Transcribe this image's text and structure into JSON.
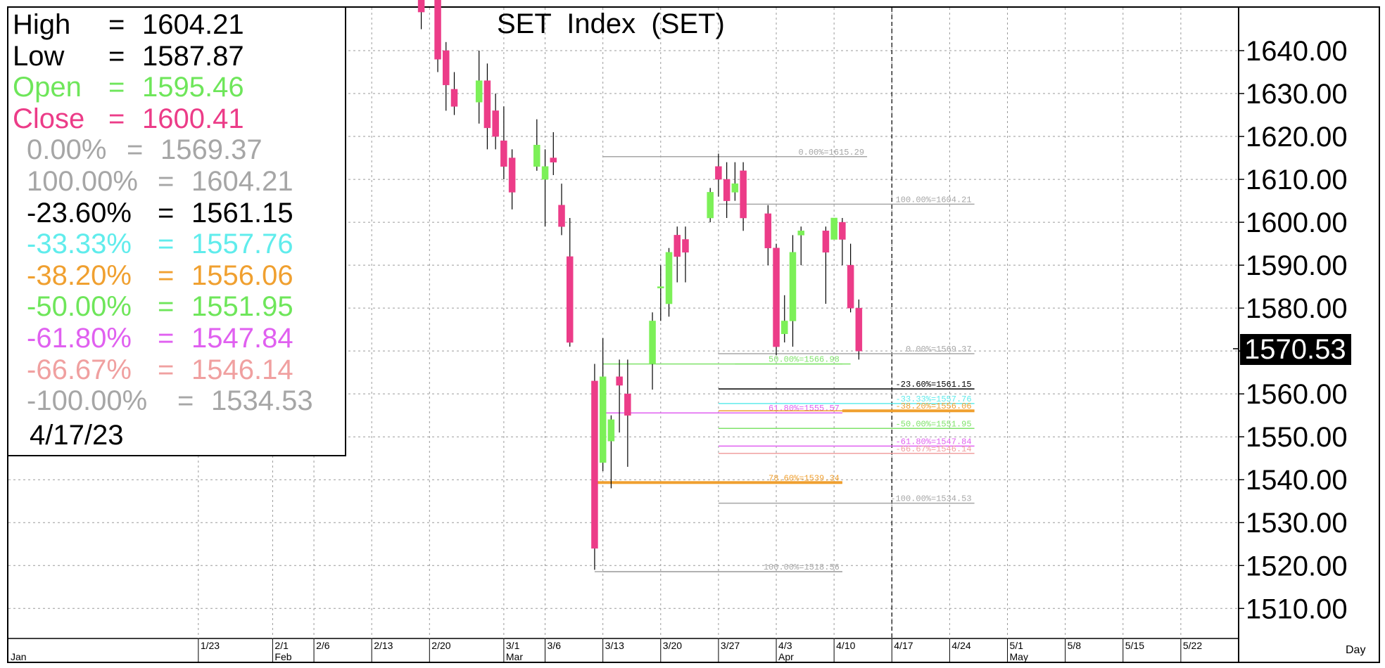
{
  "chart_data": {
    "type": "candlestick",
    "title": "SET  Index  (SET)",
    "yaxis": {
      "range": [
        1503,
        1650
      ],
      "ticks": [
        "1510.00",
        "1520.00",
        "1530.00",
        "1540.00",
        "1550.00",
        "1560.00",
        "1570.00",
        "1580.00",
        "1590.00",
        "1600.00",
        "1610.00",
        "1620.00",
        "1630.00",
        "1640.00"
      ],
      "tick_values": [
        1510,
        1520,
        1530,
        1540,
        1550,
        1560,
        1570,
        1580,
        1590,
        1600,
        1610,
        1620,
        1630,
        1640
      ],
      "last_price_label": "1570.53",
      "last_price": 1570.53
    },
    "xaxis": {
      "week_ticks": [
        "1/23",
        "2/1",
        "2/6",
        "2/13",
        "2/20",
        "3/1",
        "3/6",
        "3/13",
        "3/20",
        "3/27",
        "4/3",
        "4/10",
        "4/17",
        "4/24",
        "5/1",
        "5/8",
        "5/15",
        "5/22"
      ],
      "week_tick_day": [
        23,
        32,
        37,
        44,
        51,
        60,
        65,
        72,
        79,
        86,
        93,
        100,
        107,
        114,
        121,
        128,
        135,
        142
      ],
      "month_labels": [
        "Jan",
        "Feb",
        "Mar",
        "Apr",
        "May"
      ],
      "month_label_day": [
        0,
        32,
        60,
        93,
        121
      ],
      "unit_label": "Day"
    },
    "candles": [
      {
        "day": 50,
        "open": 1660,
        "high": 1663,
        "low": 1645,
        "close": 1649
      },
      {
        "day": 52,
        "open": 1652,
        "high": 1653,
        "low": 1635,
        "close": 1638
      },
      {
        "day": 53,
        "open": 1640,
        "high": 1642,
        "low": 1626,
        "close": 1632
      },
      {
        "day": 54,
        "open": 1631,
        "high": 1635,
        "low": 1625,
        "close": 1627
      },
      {
        "day": 57,
        "open": 1628,
        "high": 1640,
        "low": 1623,
        "close": 1633
      },
      {
        "day": 58,
        "open": 1633,
        "high": 1637,
        "low": 1617,
        "close": 1622
      },
      {
        "day": 59,
        "open": 1626,
        "high": 1630,
        "low": 1617,
        "close": 1620
      },
      {
        "day": 60,
        "open": 1619,
        "high": 1627,
        "low": 1610,
        "close": 1613
      },
      {
        "day": 61,
        "open": 1615,
        "high": 1617,
        "low": 1603,
        "close": 1607
      },
      {
        "day": 64,
        "open": 1613,
        "high": 1624,
        "low": 1612,
        "close": 1618
      },
      {
        "day": 65,
        "open": 1610,
        "high": 1617,
        "low": 1599,
        "close": 1613
      },
      {
        "day": 66,
        "open": 1615,
        "high": 1621,
        "low": 1611,
        "close": 1614
      },
      {
        "day": 67,
        "open": 1604,
        "high": 1609,
        "low": 1597,
        "close": 1599
      },
      {
        "day": 68,
        "open": 1592,
        "high": 1601,
        "low": 1571,
        "close": 1572
      },
      {
        "day": 71,
        "open": 1563,
        "high": 1567,
        "low": 1519,
        "close": 1524
      },
      {
        "day": 72,
        "open": 1544,
        "high": 1573,
        "low": 1542,
        "close": 1564
      },
      {
        "day": 73,
        "open": 1549,
        "high": 1555,
        "low": 1538,
        "close": 1554
      },
      {
        "day": 74,
        "open": 1564,
        "high": 1568,
        "low": 1551,
        "close": 1562
      },
      {
        "day": 75,
        "open": 1560,
        "high": 1568,
        "low": 1543,
        "close": 1555
      },
      {
        "day": 78,
        "open": 1567,
        "high": 1579,
        "low": 1561,
        "close": 1577
      },
      {
        "day": 79,
        "open": 1585,
        "high": 1590,
        "low": 1577,
        "close": 1585
      },
      {
        "day": 80,
        "open": 1581,
        "high": 1594,
        "low": 1578,
        "close": 1593
      },
      {
        "day": 81,
        "open": 1597,
        "high": 1599,
        "low": 1586,
        "close": 1592
      },
      {
        "day": 82,
        "open": 1596,
        "high": 1599,
        "low": 1586,
        "close": 1593
      },
      {
        "day": 85,
        "open": 1601,
        "high": 1608,
        "low": 1600,
        "close": 1607
      },
      {
        "day": 86,
        "open": 1613,
        "high": 1616,
        "low": 1606,
        "close": 1610
      },
      {
        "day": 87,
        "open": 1610,
        "high": 1614,
        "low": 1601,
        "close": 1605
      },
      {
        "day": 88,
        "open": 1607,
        "high": 1614,
        "low": 1605,
        "close": 1609
      },
      {
        "day": 89,
        "open": 1612,
        "high": 1614,
        "low": 1598,
        "close": 1601
      },
      {
        "day": 92,
        "open": 1602,
        "high": 1604,
        "low": 1590,
        "close": 1594
      },
      {
        "day": 93,
        "open": 1594,
        "high": 1595,
        "low": 1569,
        "close": 1571
      },
      {
        "day": 94,
        "open": 1574,
        "high": 1583,
        "low": 1572,
        "close": 1577
      },
      {
        "day": 95,
        "open": 1577,
        "high": 1597,
        "low": 1571,
        "close": 1593
      },
      {
        "day": 96,
        "open": 1597,
        "high": 1599,
        "low": 1590,
        "close": 1598
      },
      {
        "day": 99,
        "open": 1598,
        "high": 1599,
        "low": 1581,
        "close": 1593
      },
      {
        "day": 100,
        "open": 1596,
        "high": 1601,
        "low": 1596,
        "close": 1601
      },
      {
        "day": 101,
        "open": 1600,
        "high": 1601,
        "low": 1590,
        "close": 1596
      },
      {
        "day": 102,
        "open": 1590,
        "high": 1595,
        "low": 1579,
        "close": 1580
      },
      {
        "day": 103,
        "open": 1580,
        "high": 1582,
        "low": 1568,
        "close": 1570
      }
    ],
    "fib_sets": [
      {
        "label_set": "upper",
        "x_from_day": 86,
        "x_to_day": 104,
        "levels": [
          {
            "label": "0.00%=1615.29",
            "value": 1615.29,
            "color": "#a6a6a6"
          }
        ]
      },
      {
        "label_set": "mid-left",
        "x_from_day": 88,
        "x_to_day": 101,
        "levels": [
          {
            "label": "50.00%=1566.98",
            "value": 1566.98,
            "color": "#7fe36a"
          },
          {
            "label": "61.80%=1555.57",
            "value": 1555.57,
            "color": "#e060f0"
          }
        ]
      },
      {
        "label_set": "lower-left",
        "x_from_day": 71,
        "x_to_day": 101,
        "levels": [
          {
            "label": "78.60%=1539.34",
            "value": 1539.34,
            "color": "#f0a030"
          },
          {
            "label": "100.00%=1518.56",
            "value": 1518.56,
            "color": "#a6a6a6"
          }
        ]
      },
      {
        "label_set": "current",
        "x_from_day": 86,
        "x_to_day": 117,
        "levels": [
          {
            "label": "100.00%=1604.21",
            "value": 1604.21,
            "color": "#a6a6a6"
          },
          {
            "label": "0.00%=1569.37",
            "value": 1569.37,
            "color": "#a6a6a6"
          },
          {
            "label": "-23.60%=1561.15",
            "value": 1561.15,
            "color": "#000000"
          },
          {
            "label": "-33.33%=1557.76",
            "value": 1557.76,
            "color": "#60ecec"
          },
          {
            "label": "-38.20%=1556.06",
            "value": 1556.06,
            "color": "#f0a030"
          },
          {
            "label": "-50.00%=1551.95",
            "value": 1551.95,
            "color": "#7fe36a"
          },
          {
            "label": "-61.80%=1547.84",
            "value": 1547.84,
            "color": "#e060f0"
          },
          {
            "label": "-66.67%=1546.14",
            "value": 1546.14,
            "color": "#f0a0a0"
          },
          {
            "label": "-100.00%=1534.53",
            "value": 1534.53,
            "color": "#a6a6a6"
          }
        ]
      }
    ],
    "extra_lines": [
      {
        "value": 1566.98,
        "from_day": 72,
        "to_day": 102,
        "color": "#7fe36a"
      },
      {
        "value": 1555.57,
        "from_day": 72,
        "to_day": 101,
        "color": "#e060f0"
      },
      {
        "value": 1539.34,
        "from_day": 71,
        "to_day": 101,
        "color": "#f0a030",
        "thick": true
      },
      {
        "value": 1556.06,
        "from_day": 101,
        "to_day": 117,
        "color": "#f0a030",
        "thick": true
      },
      {
        "value": 1615.29,
        "from_day": 72,
        "to_day": 101,
        "color": "#a6a6a6"
      },
      {
        "value": 1518.56,
        "from_day": 72,
        "to_day": 101,
        "color": "#a6a6a6"
      }
    ],
    "vertical_marker_day": 107,
    "colors": {
      "up": "#7cf058",
      "down": "#ec3c88",
      "grid": "#9a9a9a",
      "wick": "#000000"
    }
  },
  "legend": {
    "rows": [
      {
        "name": "High",
        "value": "1604.21",
        "color": "#000000"
      },
      {
        "name": "Low",
        "value": "1587.87",
        "color": "#000000"
      },
      {
        "name": "Open",
        "value": "1595.46",
        "color": "#6ee65a"
      },
      {
        "name": "Close",
        "value": "1600.41",
        "color": "#ec3c88"
      },
      {
        "name": "0.00%",
        "value": "1569.37",
        "color": "#a6a6a6"
      },
      {
        "name": "100.00%",
        "value": "1604.21",
        "color": "#a6a6a6"
      },
      {
        "name": "-23.60%",
        "value": "1561.15",
        "color": "#000000"
      },
      {
        "name": "-33.33%",
        "value": "1557.76",
        "color": "#60ecec"
      },
      {
        "name": "-38.20%",
        "value": "1556.06",
        "color": "#f0a030"
      },
      {
        "name": "-50.00%",
        "value": "1551.95",
        "color": "#6ee65a"
      },
      {
        "name": "-61.80%",
        "value": "1547.84",
        "color": "#e060f0"
      },
      {
        "name": "-66.67%",
        "value": "1546.14",
        "color": "#f0a0a0"
      },
      {
        "name": "-100.00%",
        "value": "1534.53",
        "color": "#a6a6a6"
      }
    ],
    "eq": "=",
    "date": "4/17/23"
  }
}
